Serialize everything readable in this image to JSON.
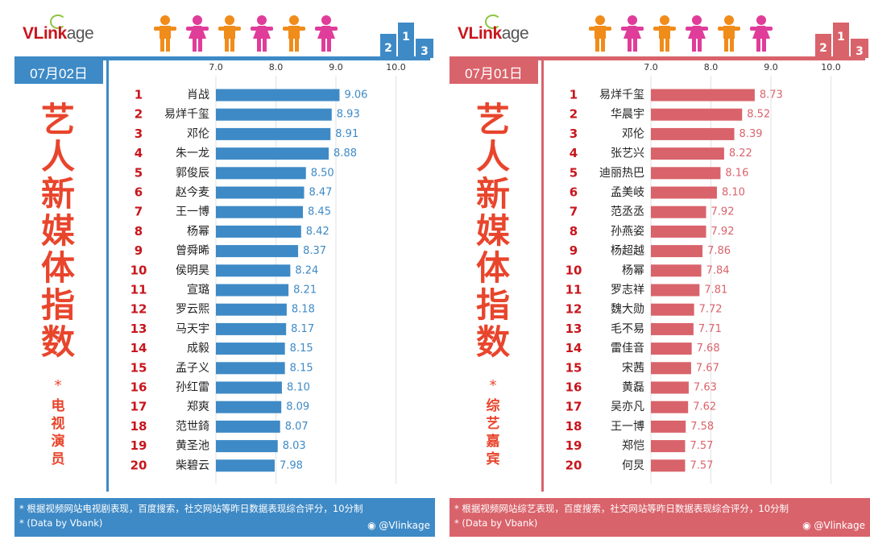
{
  "brand": {
    "logo_main": "VLink",
    "logo_tail": "age"
  },
  "colors": {
    "left_accent": "#3e8ac6",
    "right_accent": "#d9636b",
    "rank_color": "#c8161d",
    "title_color": "#e8452c",
    "person_orange": "#f08c1a",
    "person_pink": "#e03c9a"
  },
  "footer": {
    "note_left": "* 根据视频网站电视剧表现，百度搜索，社交网站等昨日数据表现综合评分，10分制",
    "note_right": "* 根据视频网站综艺表现，百度搜索，社交网站等昨日数据表现综合评分，10分制",
    "source": "* (Data by Vbank)",
    "weibo": "@Vlinkage"
  },
  "panels": [
    {
      "date": "07月02日",
      "title_chars": [
        "艺",
        "人",
        "新",
        "媒",
        "体",
        "指",
        "数"
      ],
      "star": "*",
      "subtitle_chars": [
        "电",
        "视",
        "演",
        "员"
      ]
    },
    {
      "date": "07月01日",
      "title_chars": [
        "艺",
        "人",
        "新",
        "媒",
        "体",
        "指",
        "数"
      ],
      "star": "*",
      "subtitle_chars": [
        "综",
        "艺",
        "嘉",
        "宾"
      ]
    }
  ],
  "chart_data": [
    {
      "type": "bar",
      "orientation": "horizontal",
      "xlim": [
        7.0,
        10.0
      ],
      "ticks": [
        "7.0",
        "8.0",
        "9.0",
        "10.0"
      ],
      "ranks": [
        1,
        2,
        3,
        4,
        5,
        6,
        7,
        8,
        9,
        10,
        11,
        12,
        13,
        14,
        15,
        16,
        17,
        18,
        19,
        20
      ],
      "categories": [
        "肖战",
        "易烊千玺",
        "邓伦",
        "朱一龙",
        "郭俊辰",
        "赵今麦",
        "王一博",
        "杨幂",
        "曾舜晞",
        "侯明昊",
        "宣璐",
        "罗云熙",
        "马天宇",
        "成毅",
        "孟子义",
        "孙红雷",
        "郑爽",
        "范世錡",
        "黄圣池",
        "柴碧云"
      ],
      "values": [
        9.06,
        8.93,
        8.91,
        8.88,
        8.5,
        8.47,
        8.45,
        8.42,
        8.37,
        8.24,
        8.21,
        8.18,
        8.17,
        8.15,
        8.15,
        8.1,
        8.09,
        8.07,
        8.03,
        7.98
      ],
      "value_labels": [
        "9.06",
        "8.93",
        "8.91",
        "8.88",
        "8.50",
        "8.47",
        "8.45",
        "8.42",
        "8.37",
        "8.24",
        "8.21",
        "8.18",
        "8.17",
        "8.15",
        "8.15",
        "8.10",
        "8.09",
        "8.07",
        "8.03",
        "7.98"
      ],
      "bar_color": "#3e8ac6"
    },
    {
      "type": "bar",
      "orientation": "horizontal",
      "xlim": [
        7.0,
        10.0
      ],
      "ticks": [
        "7.0",
        "8.0",
        "9.0",
        "10.0"
      ],
      "ranks": [
        1,
        2,
        3,
        4,
        5,
        6,
        7,
        8,
        9,
        10,
        11,
        12,
        13,
        14,
        15,
        16,
        17,
        18,
        19,
        20
      ],
      "categories": [
        "易烊千玺",
        "华晨宇",
        "邓伦",
        "张艺兴",
        "迪丽热巴",
        "孟美岐",
        "范丞丞",
        "孙燕姿",
        "杨超越",
        "杨幂",
        "罗志祥",
        "魏大勋",
        "毛不易",
        "雷佳音",
        "宋茜",
        "黄磊",
        "吴亦凡",
        "王一博",
        "郑恺",
        "何炅"
      ],
      "values": [
        8.73,
        8.52,
        8.39,
        8.22,
        8.16,
        8.1,
        7.92,
        7.92,
        7.86,
        7.84,
        7.81,
        7.72,
        7.71,
        7.68,
        7.67,
        7.63,
        7.62,
        7.58,
        7.57,
        7.57
      ],
      "value_labels": [
        "8.73",
        "8.52",
        "8.39",
        "8.22",
        "8.16",
        "8.10",
        "7.92",
        "7.92",
        "7.86",
        "7.84",
        "7.81",
        "7.72",
        "7.71",
        "7.68",
        "7.67",
        "7.63",
        "7.62",
        "7.58",
        "7.57",
        "7.57"
      ],
      "bar_color": "#d9636b"
    }
  ]
}
